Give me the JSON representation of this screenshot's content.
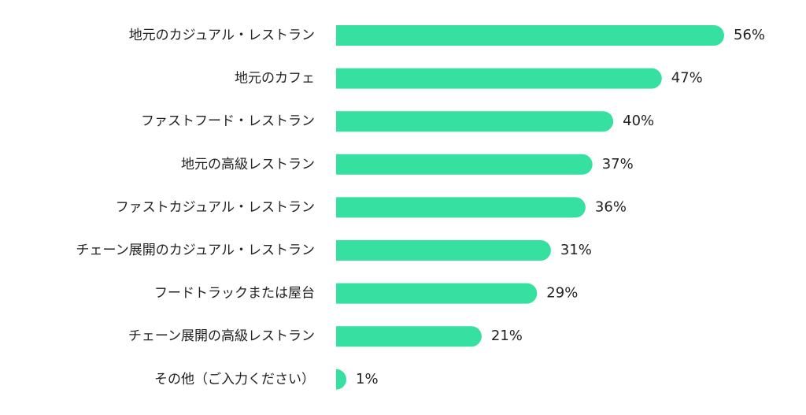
{
  "chart_data": {
    "type": "bar",
    "orientation": "horizontal",
    "categories": [
      "地元のカジュアル・レストラン",
      "地元のカフェ",
      "ファストフード・レストラン",
      "地元の高級レストラン",
      "ファストカジュアル・レストラン",
      "チェーン展開のカジュアル・レストラン",
      "フードトラックまたは屋台",
      "チェーン展開の高級レストラン",
      "その他（ご入力ください）"
    ],
    "values": [
      56,
      47,
      40,
      37,
      36,
      31,
      29,
      21,
      1
    ],
    "value_labels": [
      "56%",
      "47%",
      "40%",
      "37%",
      "36%",
      "31%",
      "29%",
      "21%",
      "1%"
    ],
    "unit": "%",
    "xlim": [
      0,
      56
    ],
    "grid": false,
    "legend": "none",
    "bar_color": "#35e0a1"
  }
}
